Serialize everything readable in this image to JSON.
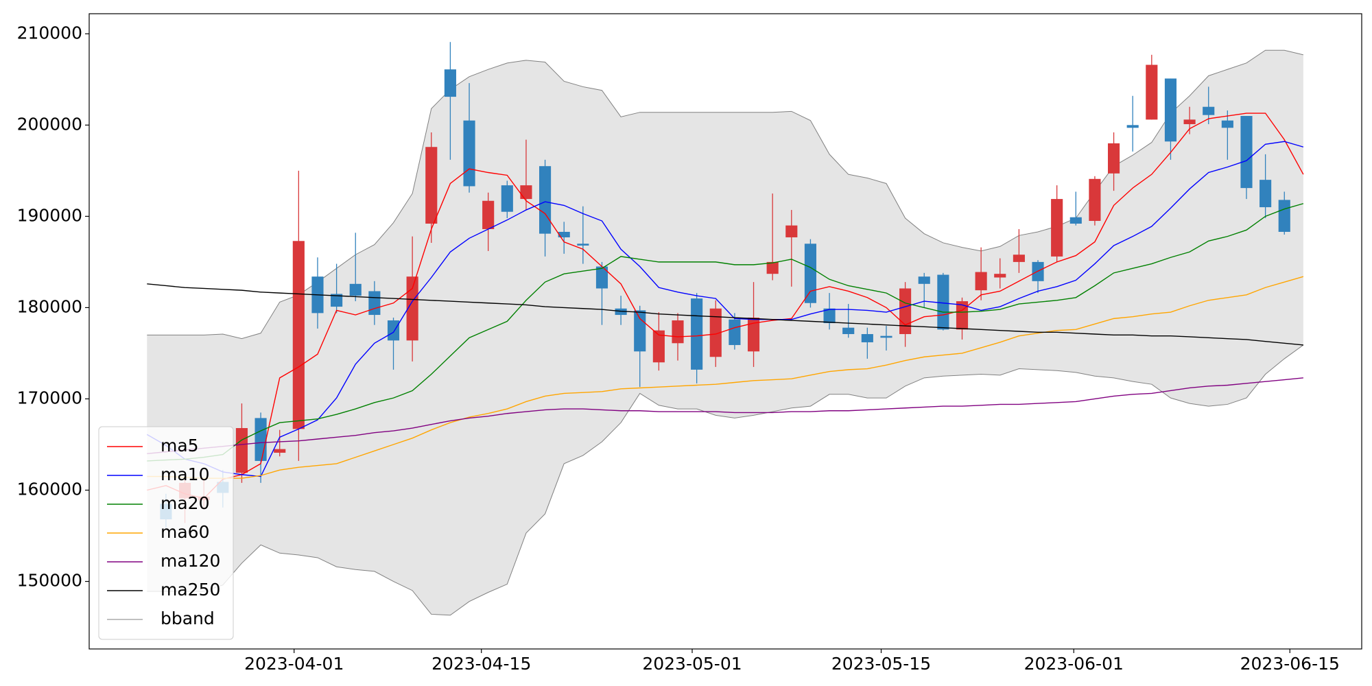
{
  "chart_data": {
    "type": "candlestick",
    "x": [
      0,
      1,
      2,
      3,
      4,
      5,
      6,
      7,
      8,
      9,
      10,
      11,
      12,
      13,
      14,
      15,
      16,
      17,
      18,
      19,
      20,
      21,
      22,
      23,
      24,
      25,
      26,
      27,
      28,
      29,
      30,
      31,
      32,
      33,
      34,
      35,
      36,
      37,
      38,
      39,
      40,
      41,
      42,
      43,
      44,
      45,
      46,
      47,
      48,
      49,
      50,
      51,
      52,
      53,
      54,
      55,
      56,
      57,
      58,
      59,
      60,
      61
    ],
    "xlim": [
      -3.05,
      64.08
    ],
    "xticks": [
      {
        "value": 7.76,
        "label": "2023-04-01"
      },
      {
        "value": 17.64,
        "label": "2023-04-15"
      },
      {
        "value": 28.76,
        "label": "2023-05-01"
      },
      {
        "value": 38.73,
        "label": "2023-05-15"
      },
      {
        "value": 48.89,
        "label": "2023-06-01"
      },
      {
        "value": 60.29,
        "label": "2023-06-15"
      }
    ],
    "ylim": [
      142600,
      212200
    ],
    "yticks": [
      150000,
      160000,
      170000,
      180000,
      190000,
      200000,
      210000
    ],
    "up_color": "#d9383a",
    "down_color": "#3182bd",
    "open": [
      null,
      158500,
      159100,
      158900,
      160900,
      161900,
      167900,
      164100,
      166700,
      183400,
      181500,
      182600,
      181800,
      178600,
      176400,
      189200,
      206100,
      200500,
      188600,
      193400,
      191900,
      195500,
      188300,
      187000,
      184500,
      179900,
      179700,
      174000,
      176100,
      181000,
      174600,
      178700,
      175200,
      183700,
      187700,
      187000,
      179900,
      177800,
      177100,
      176900,
      177100,
      183400,
      183600,
      177600,
      181900,
      183300,
      185000,
      185000,
      185600,
      189900,
      189500,
      194700,
      200000,
      200600,
      205100,
      200100,
      202000,
      200500,
      201000,
      194000,
      191800,
      null
    ],
    "high": [
      null,
      159600,
      162000,
      161200,
      162200,
      169500,
      168500,
      166600,
      195000,
      185500,
      184800,
      188200,
      182900,
      178900,
      187800,
      199200,
      209100,
      204600,
      192600,
      193900,
      198400,
      196200,
      189400,
      191100,
      185000,
      181300,
      180200,
      179500,
      179400,
      181600,
      180800,
      179400,
      182800,
      192500,
      190700,
      187500,
      181600,
      180400,
      177800,
      178000,
      182800,
      183800,
      183800,
      181100,
      186600,
      185400,
      188600,
      185200,
      193400,
      192700,
      194400,
      199200,
      203200,
      207700,
      205100,
      202000,
      204200,
      201600,
      201000,
      196800,
      192700,
      null
    ],
    "low": [
      null,
      155900,
      156400,
      158000,
      158100,
      160800,
      160800,
      163700,
      163200,
      177700,
      179400,
      180700,
      178100,
      173200,
      174100,
      187100,
      196200,
      192600,
      186200,
      189800,
      190700,
      185600,
      185900,
      184800,
      178100,
      178100,
      171300,
      173100,
      174200,
      171700,
      173500,
      175400,
      173500,
      183000,
      182300,
      180000,
      177600,
      176700,
      174400,
      175300,
      175700,
      180000,
      177500,
      176500,
      180800,
      182100,
      183800,
      181600,
      185000,
      189000,
      189000,
      192800,
      197100,
      200600,
      196200,
      199000,
      200100,
      196200,
      191900,
      189800,
      188000,
      null
    ],
    "close": [
      null,
      156800,
      160800,
      159300,
      159700,
      166800,
      163200,
      164500,
      187300,
      179400,
      180100,
      181300,
      179200,
      176400,
      183400,
      197600,
      203100,
      193300,
      191700,
      190500,
      193400,
      188100,
      187700,
      186800,
      182100,
      179200,
      175200,
      177500,
      178600,
      173200,
      179900,
      175900,
      178900,
      185000,
      189000,
      180500,
      178300,
      177100,
      176200,
      176700,
      182100,
      182600,
      177600,
      180700,
      183900,
      183700,
      185800,
      182900,
      191900,
      189200,
      194100,
      198000,
      199700,
      206600,
      198200,
      200600,
      201100,
      199700,
      193100,
      191000,
      188300,
      null
    ],
    "series": [
      {
        "name": "ma5",
        "color": "#ff0000",
        "values": [
          160000,
          160500,
          159600,
          159100,
          161200,
          161700,
          162900,
          172300,
          173500,
          174900,
          179700,
          179200,
          179900,
          180500,
          182100,
          188600,
          193600,
          195200,
          194800,
          194500,
          191700,
          190300,
          187200,
          186400,
          184500,
          182600,
          178800,
          177000,
          176800,
          176900,
          177100,
          177800,
          178300,
          178600,
          178800,
          181800,
          182300,
          181800,
          181100,
          180000,
          178100,
          179000,
          179200,
          179700,
          181400,
          181800,
          182900,
          184000,
          185000,
          185700,
          187200,
          191200,
          193100,
          194600,
          197000,
          199600,
          200700,
          201000,
          201300,
          201300,
          198400,
          194600
        ]
      },
      {
        "name": "ma10",
        "color": "#0000ff",
        "values": [
          166100,
          164900,
          163400,
          162900,
          162000,
          161700,
          161500,
          165800,
          166700,
          167700,
          170100,
          173800,
          176100,
          177300,
          180700,
          183300,
          186100,
          187600,
          188600,
          189600,
          190700,
          191600,
          191200,
          190300,
          189500,
          186400,
          184500,
          182200,
          181700,
          181300,
          181000,
          178800,
          178700,
          178700,
          178700,
          179300,
          179800,
          179800,
          179700,
          179500,
          180100,
          180700,
          180500,
          180300,
          179700,
          180100,
          181000,
          181800,
          182300,
          183000,
          184800,
          186800,
          187800,
          188900,
          190900,
          193000,
          194800,
          195400,
          196100,
          197900,
          198200,
          197600
        ]
      },
      {
        "name": "ma20",
        "color": "#008000",
        "values": [
          163200,
          163300,
          163400,
          163600,
          163900,
          165500,
          166500,
          167400,
          167600,
          167800,
          168300,
          168900,
          169600,
          170100,
          170900,
          172700,
          174700,
          176700,
          177600,
          178500,
          180800,
          182800,
          183700,
          184000,
          184300,
          185600,
          185300,
          185000,
          185000,
          185000,
          185000,
          184700,
          184700,
          184900,
          185300,
          184400,
          183100,
          182400,
          182000,
          181600,
          180500,
          180000,
          179500,
          179500,
          179600,
          179800,
          180400,
          180600,
          180800,
          181100,
          182400,
          183800,
          184300,
          184800,
          185500,
          186100,
          187300,
          187800,
          188500,
          190000,
          190800,
          191400
        ]
      },
      {
        "name": "ma60",
        "color": "#ffa500",
        "values": [
          161500,
          161500,
          161400,
          161300,
          161300,
          161300,
          161600,
          162200,
          162500,
          162700,
          162900,
          163600,
          164300,
          165000,
          165700,
          166600,
          167400,
          168000,
          168400,
          168900,
          169700,
          170300,
          170600,
          170700,
          170800,
          171100,
          171200,
          171300,
          171400,
          171500,
          171600,
          171800,
          172000,
          172100,
          172200,
          172600,
          173000,
          173200,
          173300,
          173700,
          174200,
          174600,
          174800,
          175000,
          175600,
          176200,
          176900,
          177200,
          177500,
          177600,
          178200,
          178800,
          179000,
          179300,
          179500,
          180200,
          180800,
          181100,
          181400,
          182200,
          182800,
          183400
        ]
      },
      {
        "name": "ma120",
        "color": "#800080",
        "values": [
          164000,
          164200,
          164400,
          164600,
          164800,
          165000,
          165200,
          165300,
          165400,
          165600,
          165800,
          166000,
          166300,
          166500,
          166800,
          167200,
          167600,
          167900,
          168100,
          168400,
          168600,
          168800,
          168900,
          168900,
          168800,
          168700,
          168700,
          168600,
          168600,
          168600,
          168600,
          168500,
          168500,
          168500,
          168600,
          168600,
          168700,
          168700,
          168800,
          168900,
          169000,
          169100,
          169200,
          169200,
          169300,
          169400,
          169400,
          169500,
          169600,
          169700,
          170000,
          170300,
          170500,
          170600,
          170900,
          171200,
          171400,
          171500,
          171700,
          171900,
          172100,
          172300
        ]
      },
      {
        "name": "ma250",
        "color": "#000000",
        "values": [
          182600,
          182400,
          182200,
          182100,
          182000,
          181900,
          181700,
          181600,
          181500,
          181400,
          181300,
          181200,
          181100,
          181000,
          180900,
          180800,
          180700,
          180600,
          180500,
          180400,
          180300,
          180100,
          180000,
          179900,
          179800,
          179600,
          179500,
          179300,
          179200,
          179100,
          179000,
          178900,
          178800,
          178700,
          178600,
          178500,
          178400,
          178300,
          178200,
          178100,
          178000,
          177900,
          177800,
          177700,
          177600,
          177500,
          177400,
          177300,
          177300,
          177200,
          177100,
          177000,
          177000,
          176900,
          176900,
          176800,
          176700,
          176600,
          176500,
          176300,
          176100,
          175900
        ]
      }
    ],
    "band": {
      "name": "bband",
      "color": "#808080",
      "fill": "#e5e5e5",
      "upper": [
        177000,
        177000,
        177000,
        177000,
        177100,
        176600,
        177200,
        180600,
        181400,
        182800,
        184300,
        185800,
        186900,
        189300,
        192500,
        201800,
        203900,
        205300,
        206100,
        206800,
        207100,
        206900,
        204800,
        204200,
        203800,
        200900,
        201400,
        201400,
        201400,
        201400,
        201400,
        201400,
        201400,
        201400,
        201500,
        200500,
        196800,
        194600,
        194200,
        193600,
        189800,
        188100,
        187100,
        186600,
        186200,
        186700,
        187900,
        188300,
        188900,
        189800,
        192700,
        195500,
        196700,
        198100,
        201300,
        203200,
        205400,
        206100,
        206800,
        208200,
        208200,
        207700
      ],
      "lower": [
        148900,
        148900,
        148900,
        148900,
        149600,
        152000,
        154000,
        153100,
        152900,
        152600,
        151600,
        151300,
        151100,
        150000,
        149000,
        146400,
        146300,
        147800,
        148800,
        149700,
        155300,
        157400,
        162900,
        163800,
        165300,
        167400,
        170600,
        169300,
        168900,
        168900,
        168200,
        167900,
        168200,
        168600,
        169000,
        169200,
        170500,
        170500,
        170100,
        170100,
        171400,
        172300,
        172500,
        172600,
        172700,
        172600,
        173300,
        173200,
        173100,
        172900,
        172500,
        172300,
        171900,
        171600,
        170100,
        169500,
        169200,
        169400,
        170100,
        172700,
        174400,
        175900
      ]
    },
    "legend": "lower left"
  }
}
